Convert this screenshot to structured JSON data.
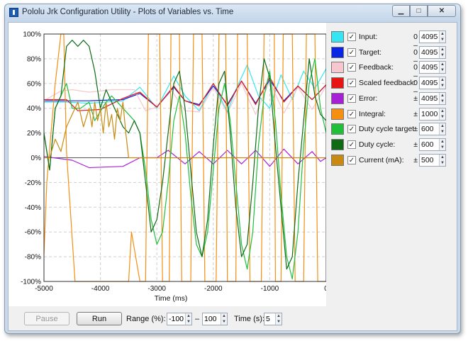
{
  "window": {
    "title": "Pololu Jrk Configuration Utility - Plots of Variables vs. Time"
  },
  "legend": [
    {
      "name": "Input:",
      "color": "#33e6f2",
      "sym": "0 –",
      "value": "4095",
      "checked": true
    },
    {
      "name": "Target:",
      "color": "#0a24e6",
      "sym": "0 –",
      "value": "4095",
      "checked": true
    },
    {
      "name": "Feedback:",
      "color": "#f7c6cf",
      "sym": "0 –",
      "value": "4095",
      "checked": true
    },
    {
      "name": "Scaled feedback:",
      "color": "#e81414",
      "sym": "0 –",
      "value": "4095",
      "checked": true
    },
    {
      "name": "Error:",
      "color": "#a820d6",
      "sym": "±",
      "value": "4095",
      "checked": true
    },
    {
      "name": "Integral:",
      "color": "#f68e12",
      "sym": "±",
      "value": "1000",
      "checked": true
    },
    {
      "name": "Duty cycle target:",
      "color": "#1fbf3a",
      "sym": "±",
      "value": "600",
      "checked": true
    },
    {
      "name": "Duty cycle:",
      "color": "#0e6a14",
      "sym": "±",
      "value": "600",
      "checked": true
    },
    {
      "name": "Current (mA):",
      "color": "#c88a10",
      "sym": "±",
      "value": "500",
      "checked": true
    }
  ],
  "controls": {
    "pause_label": "Pause",
    "run_label": "Run",
    "range_label": "Range (%):",
    "range_min": "-100",
    "range_dash": "–",
    "range_max": "100",
    "time_label": "Time (s):",
    "time_value": "5"
  },
  "chart_data": {
    "type": "line",
    "xlabel": "Time (ms)",
    "xlim": [
      -5000,
      0
    ],
    "ylim": [
      -100,
      100
    ],
    "x_ticks": [
      -5000,
      -4000,
      -3000,
      -2000,
      -1000,
      0
    ],
    "x_tick_labels": [
      "-5000",
      "-4000",
      "-3000",
      "-2000",
      "-1000",
      "0"
    ],
    "y_ticks": [
      -100,
      -80,
      -60,
      -40,
      -20,
      0,
      20,
      40,
      60,
      80,
      100
    ],
    "y_tick_labels": [
      "-100%",
      "-80%",
      "-60%",
      "-40%",
      "-20%",
      "0%",
      "20%",
      "40%",
      "60%",
      "80%",
      "100%"
    ],
    "grid": true,
    "series": [
      {
        "name": "Input",
        "color": "#33e6f2",
        "x": [
          -5000,
          -4600,
          -4200,
          -3600,
          -3300,
          -3000,
          -2700,
          -2500,
          -2250,
          -2000,
          -1750,
          -1600,
          -1400,
          -1200,
          -1000,
          -800,
          -600,
          -400,
          -200,
          0
        ],
        "y": [
          45,
          45,
          44,
          46,
          57,
          40,
          66,
          50,
          38,
          60,
          37,
          55,
          75,
          50,
          40,
          67,
          47,
          70,
          56,
          72
        ]
      },
      {
        "name": "Target",
        "color": "#0a24e6",
        "x": [
          -5000,
          -4600,
          -4200,
          -3600,
          -3300,
          -3000,
          -2700,
          -2500,
          -2250,
          -2000,
          -1750,
          -1500,
          -1250,
          -1000,
          -750,
          -500,
          -250,
          0
        ],
        "y": [
          46,
          46,
          46,
          47,
          52,
          41,
          57,
          46,
          43,
          58,
          43,
          62,
          44,
          63,
          46,
          58,
          47,
          59
        ]
      },
      {
        "name": "Feedback",
        "color": "#f7c6cf",
        "x": [
          -5000,
          -4700,
          -4500,
          -4200,
          -3800,
          -3400,
          -3200,
          -3000,
          -2750,
          -2500,
          -2250,
          -2000,
          -1750,
          -1500,
          -1250,
          -1000,
          -750,
          -500,
          -250,
          0
        ],
        "y": [
          46,
          54,
          55,
          53,
          55,
          55,
          38,
          41,
          55,
          38,
          37,
          57,
          36,
          60,
          35,
          62,
          36,
          57,
          39,
          58
        ]
      },
      {
        "name": "Scaled feedback",
        "color": "#e81414",
        "x": [
          -5000,
          -4600,
          -4400,
          -4000,
          -3600,
          -3300,
          -3000,
          -2700,
          -2500,
          -2250,
          -2000,
          -1750,
          -1500,
          -1250,
          -1000,
          -750,
          -500,
          -250,
          0
        ],
        "y": [
          47,
          47,
          38,
          39,
          48,
          53,
          41,
          58,
          46,
          42,
          60,
          42,
          62,
          43,
          65,
          45,
          58,
          47,
          59
        ]
      },
      {
        "name": "Error",
        "color": "#a820d6",
        "x": [
          -5000,
          -4500,
          -4200,
          -3600,
          -3300,
          -3000,
          -2800,
          -2500,
          -2250,
          -2000,
          -1750,
          -1500,
          -1250,
          -1000,
          -750,
          -500,
          -250,
          -100,
          0
        ],
        "y": [
          1,
          -2,
          -8,
          -7,
          0,
          0,
          6,
          -5,
          5,
          -5,
          6,
          -5,
          6,
          -7,
          7,
          -5,
          5,
          -3,
          0
        ]
      },
      {
        "name": "Integral",
        "color": "#f68e12",
        "x": [
          -5000,
          -4950,
          -4800,
          -4700,
          -4650,
          -4600,
          -4450,
          -4400,
          -3500,
          -3450,
          -3300,
          -3200,
          -3150,
          -2950,
          -2900,
          -2780,
          -2750,
          -2600,
          -2560,
          -2400,
          -2350,
          -2200,
          -2150,
          -1950,
          -1900,
          -1780,
          -1750,
          -1600,
          -1570,
          -1400,
          -1350,
          -1150,
          -1100,
          -920,
          -900,
          -800,
          -760,
          -600,
          -550,
          -400,
          -350,
          -200,
          -150,
          0
        ],
        "y": [
          -78,
          -20,
          60,
          100,
          100,
          5,
          -100,
          -100,
          -100,
          -60,
          -100,
          -100,
          100,
          100,
          -100,
          -100,
          100,
          100,
          -100,
          -100,
          100,
          100,
          -100,
          -100,
          100,
          100,
          -100,
          -100,
          100,
          100,
          -100,
          -100,
          100,
          100,
          -100,
          -100,
          100,
          100,
          -100,
          -100,
          100,
          100,
          -100,
          -100
        ]
      },
      {
        "name": "Duty cycle target",
        "color": "#1fbf3a",
        "x": [
          -5000,
          -4900,
          -4800,
          -4700,
          -4600,
          -4500,
          -4350,
          -4200,
          -4100,
          -3900,
          -3800,
          -3600,
          -3400,
          -3300,
          -3200,
          -3100,
          -3000,
          -2900,
          -2800,
          -2700,
          -2600,
          -2500,
          -2400,
          -2300,
          -2200,
          -2100,
          -2000,
          -1900,
          -1800,
          -1700,
          -1600,
          -1500,
          -1400,
          -1300,
          -1200,
          -1100,
          -1000,
          -900,
          -800,
          -700,
          -600,
          -500,
          -400,
          -300,
          -200,
          -100,
          0
        ],
        "y": [
          20,
          -10,
          40,
          50,
          60,
          40,
          40,
          45,
          30,
          45,
          50,
          40,
          30,
          20,
          -10,
          -50,
          -70,
          -60,
          -20,
          30,
          50,
          20,
          -30,
          -70,
          -80,
          -60,
          -10,
          40,
          60,
          30,
          -20,
          -70,
          -90,
          -60,
          10,
          50,
          70,
          30,
          -30,
          -80,
          -98,
          -60,
          10,
          60,
          80,
          40,
          20
        ]
      },
      {
        "name": "Duty cycle",
        "color": "#0e6a14",
        "x": [
          -5000,
          -4900,
          -4800,
          -4700,
          -4600,
          -4500,
          -4400,
          -4300,
          -4200,
          -4100,
          -4000,
          -3900,
          -3800,
          -3700,
          -3600,
          -3500,
          -3400,
          -3300,
          -3200,
          -3100,
          -3000,
          -2900,
          -2800,
          -2700,
          -2600,
          -2500,
          -2400,
          -2300,
          -2200,
          -2100,
          -2000,
          -1900,
          -1800,
          -1700,
          -1600,
          -1500,
          -1400,
          -1300,
          -1200,
          -1100,
          -1000,
          -900,
          -800,
          -700,
          -600,
          -500,
          -400,
          -300,
          -200,
          -100,
          0
        ],
        "y": [
          20,
          -10,
          40,
          50,
          90,
          95,
          90,
          95,
          90,
          70,
          40,
          55,
          45,
          35,
          25,
          20,
          30,
          20,
          -20,
          -60,
          -50,
          -20,
          20,
          60,
          70,
          40,
          -10,
          -60,
          -80,
          -50,
          10,
          60,
          70,
          20,
          -40,
          -80,
          -70,
          -20,
          40,
          80,
          65,
          10,
          -40,
          -90,
          -80,
          -20,
          30,
          80,
          50,
          35,
          30
        ]
      },
      {
        "name": "Current (mA)",
        "color": "#c88a10",
        "x": [
          -5000,
          -4900,
          -4800,
          -4700,
          -4600,
          -4500,
          -4400,
          -4300,
          -4200,
          -4150,
          -4100,
          -4050,
          -4000,
          -3950,
          -3900,
          -3850,
          -3800,
          -3750,
          -3700,
          -3650,
          -3600,
          -3550,
          -3500,
          -3400,
          -3000,
          -2000,
          -1000,
          0
        ],
        "y": [
          0,
          0,
          15,
          5,
          25,
          35,
          45,
          25,
          40,
          25,
          45,
          30,
          40,
          20,
          45,
          25,
          35,
          15,
          40,
          30,
          45,
          20,
          0,
          0,
          0,
          0,
          0,
          0
        ]
      }
    ]
  }
}
